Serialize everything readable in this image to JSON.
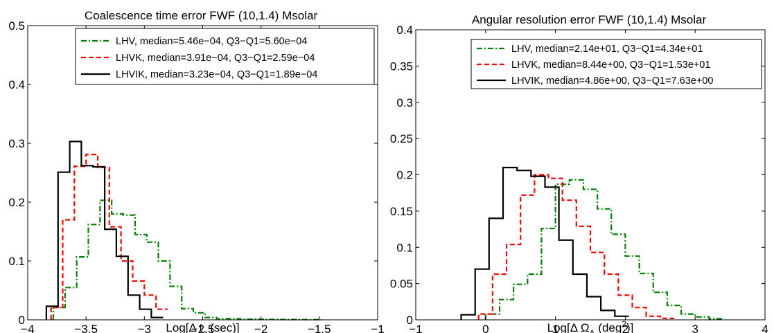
{
  "chart_data": [
    {
      "type": "line",
      "subtype": "stairs-histogram",
      "title": "Coalescence time error FWF (10,1.4) Msolar",
      "xlabel": "Log[Δ t",
      "xlabel_sub": "c",
      "xlabel_rest": " (sec)]",
      "ylabel": "",
      "xlim": [
        -4,
        -1
      ],
      "ylim": [
        0,
        0.5
      ],
      "xticks": [
        -4,
        -3.5,
        -3,
        -2.5,
        -2,
        -1.5,
        -1
      ],
      "xtick_labels": [
        "−4",
        "−3.5",
        "−3",
        "−2.5",
        "−2",
        "−1.5",
        "−1"
      ],
      "yticks": [
        0,
        0.1,
        0.2,
        0.3,
        0.4,
        0.5
      ],
      "ytick_labels": [
        "0",
        "0.1",
        "0.2",
        "0.3",
        "0.4",
        "0.5"
      ],
      "grid": false,
      "legend_position": "top-right",
      "series": [
        {
          "name": "LHV, median=5.46e−04, Q3−Q1=5.60e−04",
          "color": "#008000",
          "dash": "dashdot",
          "edges": [
            -3.78,
            -3.68,
            -3.58,
            -3.48,
            -3.38,
            -3.28,
            -3.18,
            -3.08,
            -2.98,
            -2.88,
            -2.78,
            -2.68,
            -2.58,
            -2.48,
            -2.38,
            -2.28,
            -2.18,
            -2.08,
            -1.98,
            -1.88,
            -1.78,
            -1.68,
            -1.58,
            -1.48
          ],
          "values": [
            0.021,
            0.055,
            0.107,
            0.162,
            0.203,
            0.18,
            0.178,
            0.145,
            0.132,
            0.1,
            0.057,
            0.019,
            0.012,
            0.004,
            0.002,
            0.002,
            0.001,
            0.001,
            0.0008,
            0.0006,
            0.0005,
            0.0004,
            0.0003
          ]
        },
        {
          "name": "LHVK, median=3.91e−04, Q3−Q1=2.59e−04",
          "color": "#ff0000",
          "dash": "dashed",
          "edges": [
            -3.8,
            -3.7,
            -3.6,
            -3.5,
            -3.4,
            -3.3,
            -3.2,
            -3.1,
            -3.0,
            -2.9,
            -2.8
          ],
          "values": [
            0.021,
            0.17,
            0.261,
            0.281,
            0.259,
            0.158,
            0.1,
            0.066,
            0.042,
            0.018
          ]
        },
        {
          "name": "LHVIK, median=3.23e−04, Q3−Q1=1.89e−04",
          "color": "#000000",
          "dash": "solid",
          "edges": [
            -3.84,
            -3.74,
            -3.64,
            -3.54,
            -3.44,
            -3.34,
            -3.24,
            -3.14,
            -3.04,
            -2.94,
            -2.84
          ],
          "values": [
            0.023,
            0.251,
            0.303,
            0.262,
            0.26,
            0.154,
            0.108,
            0.042,
            0.018,
            0.004
          ]
        }
      ]
    },
    {
      "type": "line",
      "subtype": "stairs-histogram",
      "title": "Angular resolution error FWF (10,1.4) Msolar",
      "xlabel": "Log[Δ Ω",
      "xlabel_sub": "A",
      "xlabel_rest": " (deg",
      "xlabel_sup": "2",
      "xlabel_end": ")]",
      "ylabel": "",
      "xlim": [
        -1,
        4
      ],
      "ylim": [
        0,
        0.4
      ],
      "xticks": [
        -1,
        0,
        1,
        2,
        3,
        4
      ],
      "xtick_labels": [
        "−1",
        "0",
        "1",
        "2",
        "3",
        "4"
      ],
      "yticks": [
        0,
        0.05,
        0.1,
        0.15,
        0.2,
        0.25,
        0.3,
        0.35,
        0.4
      ],
      "ytick_labels": [
        "0",
        "0.05",
        "0.1",
        "0.15",
        "0.2",
        "0.25",
        "0.3",
        "0.35",
        "0.4"
      ],
      "grid": false,
      "legend_position": "top-right",
      "series": [
        {
          "name": "LHV, median=2.14e+01, Q3−Q1=4.34e+01",
          "color": "#008000",
          "dash": "dashdot",
          "edges": [
            0.0,
            0.2,
            0.4,
            0.6,
            0.8,
            1.0,
            1.2,
            1.4,
            1.6,
            1.8,
            2.0,
            2.2,
            2.4,
            2.6,
            2.8,
            3.0,
            3.2,
            3.4
          ],
          "values": [
            0.008,
            0.028,
            0.049,
            0.063,
            0.126,
            0.187,
            0.193,
            0.18,
            0.153,
            0.118,
            0.088,
            0.064,
            0.038,
            0.02,
            0.008,
            0.004,
            0.0015
          ]
        },
        {
          "name": "LHVK, median=8.44e+00, Q3−Q1=1.53e+01",
          "color": "#ff0000",
          "dash": "dashed",
          "edges": [
            -0.1,
            0.1,
            0.3,
            0.5,
            0.7,
            0.9,
            1.1,
            1.3,
            1.5,
            1.7,
            1.9,
            2.1,
            2.3,
            2.5,
            2.7
          ],
          "values": [
            0.008,
            0.063,
            0.104,
            0.172,
            0.2,
            0.195,
            0.165,
            0.129,
            0.093,
            0.063,
            0.034,
            0.017,
            0.005,
            0.002
          ]
        },
        {
          "name": "LHVIK, median=4.86e+00, Q3−Q1=7.63e+00",
          "color": "#000000",
          "dash": "solid",
          "edges": [
            -0.35,
            -0.15,
            0.05,
            0.25,
            0.45,
            0.65,
            0.85,
            1.05,
            1.25,
            1.45,
            1.65,
            1.85,
            2.05
          ],
          "values": [
            0.007,
            0.07,
            0.14,
            0.21,
            0.206,
            0.198,
            0.183,
            0.11,
            0.063,
            0.032,
            0.013,
            0.005
          ]
        }
      ]
    }
  ]
}
